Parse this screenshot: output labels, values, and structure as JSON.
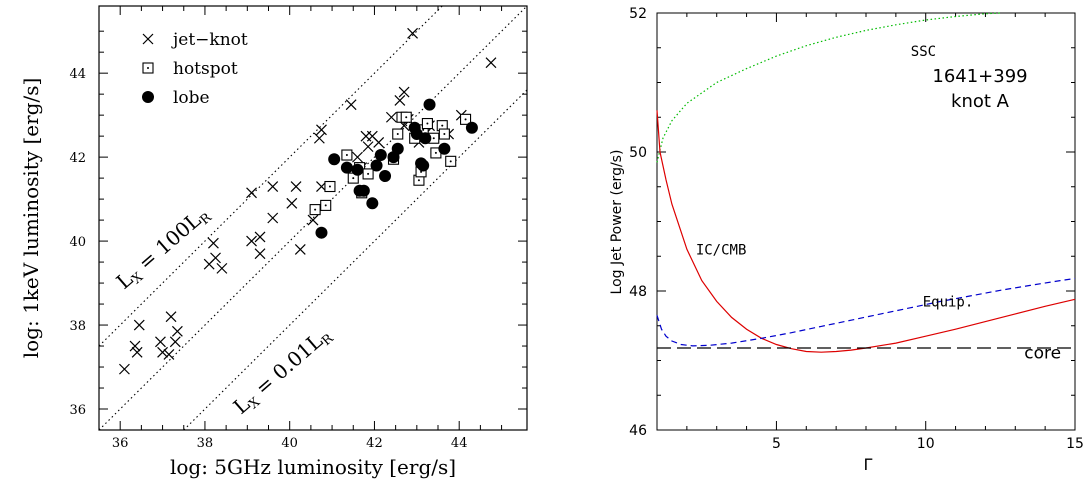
{
  "chart_data": [
    {
      "type": "scatter",
      "xlabel": "log: 5GHz luminosity [erg/s]",
      "ylabel": "log: 1keV luminosity [erg/s]",
      "xlim": [
        35.5,
        45.6
      ],
      "ylim": [
        35.5,
        45.6
      ],
      "xticks": [
        36,
        38,
        40,
        42,
        44
      ],
      "yticks": [
        36,
        38,
        40,
        42,
        44
      ],
      "legend_placement": "top-left",
      "legend": [
        {
          "marker": "cross",
          "label": "jet−knot"
        },
        {
          "marker": "square-dot",
          "label": "hotspot"
        },
        {
          "marker": "filled-circle",
          "label": "lobe"
        }
      ],
      "reference_lines": [
        {
          "offset": 2,
          "label_main": "L",
          "label_sub1": "X",
          "label_eq": " = 100L",
          "label_sub2": "R"
        },
        {
          "offset": 0,
          "label_main": "",
          "label_sub1": "",
          "label_eq": "",
          "label_sub2": ""
        },
        {
          "offset": -2,
          "label_main": "L",
          "label_sub1": "X",
          "label_eq": " = 0.01L",
          "label_sub2": "R"
        }
      ],
      "series": [
        {
          "name": "jet−knot",
          "marker": "cross",
          "points": [
            [
              36.1,
              36.95
            ],
            [
              36.35,
              37.5
            ],
            [
              36.4,
              37.35
            ],
            [
              36.45,
              38.0
            ],
            [
              36.95,
              37.6
            ],
            [
              37.0,
              37.35
            ],
            [
              37.15,
              37.3
            ],
            [
              37.2,
              38.2
            ],
            [
              37.3,
              37.6
            ],
            [
              37.35,
              37.85
            ],
            [
              38.1,
              39.45
            ],
            [
              38.2,
              39.95
            ],
            [
              38.25,
              39.6
            ],
            [
              38.4,
              39.35
            ],
            [
              39.1,
              40.0
            ],
            [
              39.1,
              41.15
            ],
            [
              39.3,
              40.1
            ],
            [
              39.3,
              39.7
            ],
            [
              39.6,
              41.3
            ],
            [
              39.6,
              40.55
            ],
            [
              40.05,
              40.9
            ],
            [
              40.15,
              41.3
            ],
            [
              40.25,
              39.8
            ],
            [
              40.55,
              40.5
            ],
            [
              40.7,
              42.45
            ],
            [
              40.75,
              41.3
            ],
            [
              40.75,
              42.65
            ],
            [
              41.45,
              43.25
            ],
            [
              41.6,
              42.0
            ],
            [
              41.7,
              41.75
            ],
            [
              41.8,
              42.5
            ],
            [
              41.85,
              42.25
            ],
            [
              41.95,
              42.5
            ],
            [
              42.1,
              42.35
            ],
            [
              42.4,
              42.95
            ],
            [
              42.6,
              43.35
            ],
            [
              42.7,
              43.55
            ],
            [
              42.7,
              42.75
            ],
            [
              42.8,
              42.9
            ],
            [
              42.9,
              44.95
            ],
            [
              43.05,
              42.35
            ],
            [
              43.2,
              42.55
            ],
            [
              43.3,
              42.75
            ],
            [
              43.75,
              42.55
            ],
            [
              44.05,
              43.0
            ],
            [
              44.75,
              44.25
            ]
          ]
        },
        {
          "name": "hotspot",
          "marker": "square-dot",
          "points": [
            [
              40.6,
              40.75
            ],
            [
              40.85,
              40.85
            ],
            [
              40.95,
              41.3
            ],
            [
              41.35,
              42.05
            ],
            [
              41.5,
              41.5
            ],
            [
              41.65,
              41.75
            ],
            [
              41.7,
              41.15
            ],
            [
              41.85,
              41.6
            ],
            [
              42.45,
              41.95
            ],
            [
              42.55,
              42.55
            ],
            [
              42.65,
              42.95
            ],
            [
              42.75,
              42.95
            ],
            [
              42.95,
              42.45
            ],
            [
              43.05,
              41.45
            ],
            [
              43.15,
              42.65
            ],
            [
              43.25,
              42.8
            ],
            [
              43.4,
              42.45
            ],
            [
              43.45,
              42.1
            ],
            [
              43.6,
              42.75
            ],
            [
              43.65,
              42.55
            ],
            [
              43.8,
              41.9
            ],
            [
              44.15,
              42.9
            ],
            [
              43.1,
              41.65
            ]
          ]
        },
        {
          "name": "lobe",
          "marker": "filled-circle",
          "points": [
            [
              40.75,
              40.2
            ],
            [
              41.05,
              41.95
            ],
            [
              41.35,
              41.75
            ],
            [
              41.6,
              41.7
            ],
            [
              41.65,
              41.2
            ],
            [
              41.75,
              41.2
            ],
            [
              41.95,
              40.9
            ],
            [
              42.05,
              41.8
            ],
            [
              42.15,
              42.05
            ],
            [
              42.25,
              41.55
            ],
            [
              42.45,
              42.0
            ],
            [
              42.55,
              42.2
            ],
            [
              42.95,
              42.7
            ],
            [
              43.0,
              42.55
            ],
            [
              43.1,
              41.85
            ],
            [
              43.15,
              41.8
            ],
            [
              43.2,
              42.45
            ],
            [
              43.3,
              43.25
            ],
            [
              43.65,
              42.2
            ],
            [
              44.3,
              42.7
            ]
          ]
        }
      ]
    },
    {
      "type": "line",
      "xlabel": "Γ",
      "ylabel": "Log Jet Power (erg/s)",
      "xlim": [
        1,
        15
      ],
      "ylim": [
        46,
        52
      ],
      "xticks": [
        5,
        10,
        15
      ],
      "yticks": [
        46,
        48,
        50,
        52
      ],
      "annotation_lines": [
        "1641+399",
        "knot A"
      ],
      "series": [
        {
          "name": "SSC",
          "color": "#00bb00",
          "dash": "1.5,2.5",
          "label_at": [
            9.5,
            51.45
          ],
          "x": [
            1,
            1.2,
            1.5,
            2,
            3,
            4,
            5,
            6,
            7,
            8,
            9,
            10,
            11,
            12,
            12.5
          ],
          "y": [
            49.85,
            50.2,
            50.45,
            50.7,
            51.0,
            51.2,
            51.38,
            51.53,
            51.65,
            51.75,
            51.83,
            51.9,
            51.95,
            51.99,
            52.0
          ]
        },
        {
          "name": "IC/CMB",
          "color": "#dd0000",
          "dash": "",
          "label_at": [
            2.3,
            48.6
          ],
          "x": [
            1,
            1.1,
            1.3,
            1.5,
            2,
            2.5,
            3,
            3.5,
            4,
            4.5,
            5,
            5.5,
            6,
            6.5,
            7,
            7.5,
            8,
            9,
            10,
            11,
            12,
            13,
            14,
            15
          ],
          "y": [
            50.6,
            50.0,
            49.6,
            49.25,
            48.6,
            48.15,
            47.85,
            47.62,
            47.45,
            47.32,
            47.23,
            47.17,
            47.13,
            47.12,
            47.13,
            47.15,
            47.18,
            47.25,
            47.35,
            47.45,
            47.56,
            47.67,
            47.78,
            47.88
          ]
        },
        {
          "name": "Equip.",
          "color": "#0000cc",
          "dash": "6,4",
          "label_at": [
            9.9,
            47.85
          ],
          "x": [
            1,
            1.15,
            1.3,
            1.5,
            1.8,
            2.2,
            2.8,
            3.5,
            4.5,
            5.5,
            6.5,
            7.5,
            8.5,
            9.5,
            10.5,
            11.5,
            12.5,
            13.5,
            14.5,
            15
          ],
          "y": [
            47.65,
            47.45,
            47.35,
            47.28,
            47.23,
            47.21,
            47.22,
            47.25,
            47.32,
            47.4,
            47.49,
            47.58,
            47.67,
            47.76,
            47.85,
            47.93,
            48.01,
            48.08,
            48.15,
            48.18
          ]
        },
        {
          "name": "core",
          "color": "#000000",
          "dash": "14,6",
          "label_at": [
            13.3,
            47.1
          ],
          "x": [
            1,
            15
          ],
          "y": [
            47.18,
            47.18
          ]
        }
      ]
    }
  ]
}
